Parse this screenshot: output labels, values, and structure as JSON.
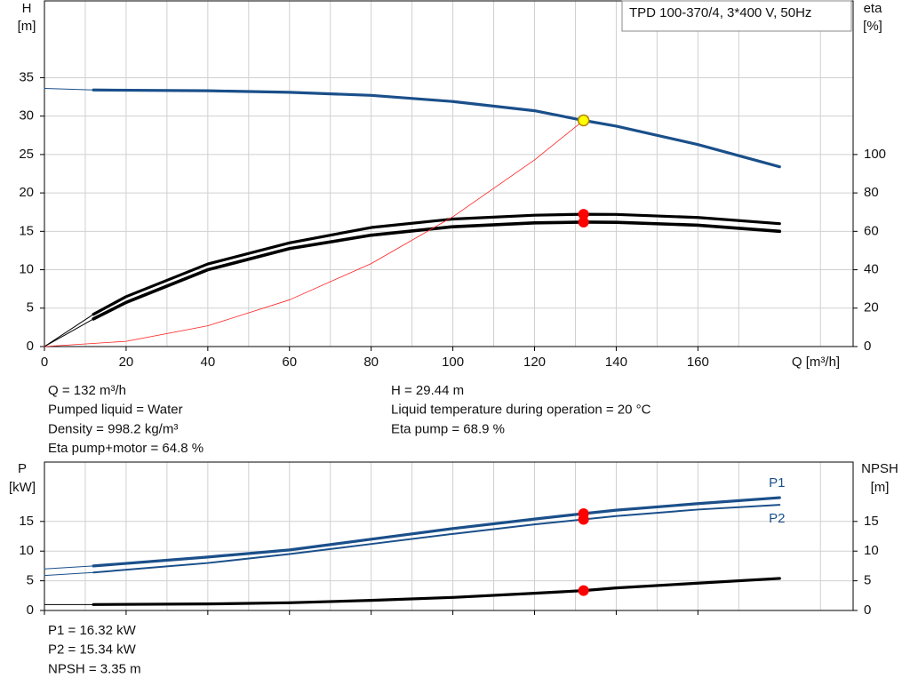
{
  "chart_data": [
    {
      "type": "line",
      "title": "TPD 100-370/4, 3*400 V, 50Hz",
      "y_label": "H",
      "y_unit": "[m]",
      "y2_label": "eta",
      "y2_unit": "[%]",
      "x_label": "Q [m³/h]",
      "xlim": [
        0,
        198
      ],
      "xticks": [
        0,
        20,
        40,
        60,
        80,
        100,
        120,
        140,
        160
      ],
      "ylim": [
        0,
        45
      ],
      "yticks": [
        0,
        5,
        10,
        15,
        20,
        25,
        30,
        35
      ],
      "y2lim": [
        0,
        180
      ],
      "y2ticks": [
        0,
        20,
        40,
        60,
        80,
        100
      ],
      "grid": true,
      "series": [
        {
          "color": "#1a4f8a",
          "style": "thin",
          "x": [
            0,
            12
          ],
          "values": [
            33.6,
            33.4
          ]
        },
        {
          "color": "#1a4f8a",
          "style": "curve",
          "x": [
            12,
            40,
            60,
            80,
            100,
            120,
            132,
            140,
            160,
            180
          ],
          "values": [
            33.4,
            33.3,
            33.1,
            32.7,
            31.9,
            30.7,
            29.44,
            28.7,
            26.3,
            23.4
          ]
        },
        {
          "color": "#000000",
          "style": "thin",
          "axis": "y2",
          "x": [
            0,
            12
          ],
          "values": [
            0,
            16.8
          ]
        },
        {
          "color": "#000000",
          "style": "curve",
          "axis": "y2",
          "x": [
            12,
            20,
            40,
            60,
            80,
            100,
            120,
            132,
            140,
            160,
            180
          ],
          "values": [
            16.8,
            26,
            43,
            54,
            62,
            66.4,
            68.4,
            68.9,
            68.8,
            67.2,
            64
          ]
        },
        {
          "color": "#000000",
          "style": "thin",
          "axis": "y2",
          "x": [
            0,
            12
          ],
          "values": [
            0,
            14.4
          ]
        },
        {
          "color": "#000000",
          "style": "bold",
          "axis": "y2",
          "x": [
            12,
            20,
            40,
            60,
            80,
            100,
            120,
            132,
            140,
            160,
            180
          ],
          "values": [
            14.4,
            23,
            40,
            51,
            58,
            62.4,
            64.4,
            64.8,
            64.7,
            63.2,
            60
          ]
        },
        {
          "color": "#ff2020",
          "style": "hair",
          "x": [
            0,
            20,
            40,
            60,
            80,
            100,
            120,
            132,
            133
          ],
          "values": [
            0,
            0.68,
            2.7,
            6.08,
            10.8,
            16.9,
            24.3,
            29.44,
            29.9
          ]
        }
      ],
      "points": [
        {
          "x": 132,
          "value": 68.9,
          "axis": "y2",
          "color": "#ff0000"
        },
        {
          "x": 132,
          "value": 64.8,
          "axis": "y2",
          "color": "#ff0000"
        },
        {
          "x": 132,
          "value": 29.44,
          "color": "#ffff00"
        }
      ],
      "readout": [
        [
          "Q = 132 m³/h",
          "Pumped liquid = Water",
          "Density = 998.2 kg/m³",
          "Eta pump+motor = 64.8 %"
        ],
        [
          "H = 29.44 m",
          "Liquid temperature during operation = 20 °C",
          "Eta pump = 68.9 %"
        ]
      ]
    },
    {
      "type": "line",
      "y_label": "P",
      "y_unit": "[kW]",
      "y2_label": "NPSH",
      "y2_unit": "[m]",
      "xlim": [
        0,
        198
      ],
      "xticks": [
        0,
        20,
        40,
        60,
        80,
        100,
        120,
        140,
        160
      ],
      "ylim": [
        0,
        25
      ],
      "yticks": [
        0,
        5,
        10,
        15
      ],
      "y2lim": [
        0,
        25
      ],
      "y2ticks": [
        0,
        5,
        10,
        15
      ],
      "grid": true,
      "series": [
        {
          "color": "#1a4f8a",
          "style": "thin",
          "x": [
            0,
            12
          ],
          "values": [
            7.0,
            7.5
          ]
        },
        {
          "name": "P1",
          "color": "#1a4f8a",
          "style": "curve",
          "x": [
            12,
            40,
            60,
            80,
            100,
            120,
            132,
            140,
            160,
            180
          ],
          "values": [
            7.5,
            9.0,
            10.2,
            12.0,
            13.8,
            15.4,
            16.32,
            16.9,
            18.0,
            19.0
          ]
        },
        {
          "color": "#1a4f8a",
          "style": "thin",
          "x": [
            0,
            12
          ],
          "values": [
            5.9,
            6.4
          ]
        },
        {
          "name": "P2",
          "color": "#1a4f8a",
          "style": "mid",
          "x": [
            12,
            40,
            60,
            80,
            100,
            120,
            132,
            140,
            160,
            180
          ],
          "values": [
            6.4,
            8.0,
            9.5,
            11.2,
            12.9,
            14.5,
            15.34,
            15.9,
            17.0,
            17.8
          ]
        },
        {
          "color": "#000000",
          "style": "thin",
          "axis": "y2",
          "x": [
            0,
            12
          ],
          "values": [
            1.0,
            1.0
          ]
        },
        {
          "color": "#000000",
          "style": "curve",
          "axis": "y2",
          "x": [
            12,
            40,
            60,
            80,
            100,
            120,
            132,
            140,
            160,
            180
          ],
          "values": [
            1.0,
            1.1,
            1.3,
            1.7,
            2.2,
            2.9,
            3.35,
            3.8,
            4.6,
            5.4
          ]
        }
      ],
      "points": [
        {
          "x": 132,
          "value": 16.32,
          "color": "#ff0000"
        },
        {
          "x": 132,
          "value": 15.34,
          "color": "#ff0000"
        },
        {
          "x": 132,
          "value": 3.35,
          "axis": "y2",
          "color": "#ff0000"
        }
      ],
      "readout": [
        [
          "P1 = 16.32 kW",
          "P2 = 15.34 kW",
          "NPSH = 3.35 m"
        ]
      ]
    }
  ]
}
